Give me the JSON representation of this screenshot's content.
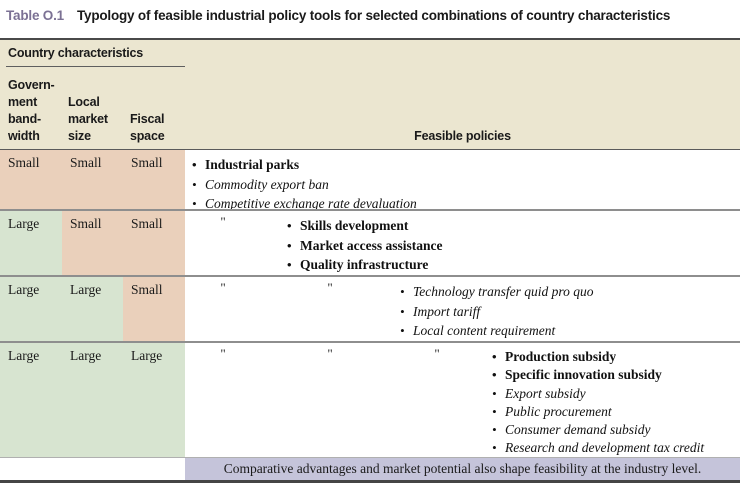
{
  "title": {
    "label": "Table O.1",
    "text": "Typology of feasible industrial policy tools for selected combinations of country characteristics"
  },
  "header": {
    "group_label": "Country characteristics",
    "columns": [
      "Govern-\nment\nband-\nwidth",
      "Local\nmarket\nsize",
      "Fiscal\nspace"
    ],
    "policies_label": "Feasible policies"
  },
  "rows": [
    {
      "government_bandwidth": "Small",
      "local_market_size": "Small",
      "fiscal_space": "Small",
      "ditto_marks": 0,
      "policies": [
        {
          "text": "Industrial parks",
          "emphasis": "bold"
        },
        {
          "text": "Commodity export ban",
          "emphasis": "italic"
        },
        {
          "text": "Competitive exchange rate devaluation",
          "emphasis": "italic"
        }
      ]
    },
    {
      "government_bandwidth": "Large",
      "local_market_size": "Small",
      "fiscal_space": "Small",
      "ditto_marks": 1,
      "policies": [
        {
          "text": "Skills development",
          "emphasis": "bold"
        },
        {
          "text": "Market access assistance",
          "emphasis": "bold"
        },
        {
          "text": "Quality infrastructure",
          "emphasis": "bold"
        }
      ]
    },
    {
      "government_bandwidth": "Large",
      "local_market_size": "Large",
      "fiscal_space": "Small",
      "ditto_marks": 2,
      "policies": [
        {
          "text": "Technology transfer quid pro quo",
          "emphasis": "italic"
        },
        {
          "text": "Import tariff",
          "emphasis": "italic"
        },
        {
          "text": "Local content requirement",
          "emphasis": "italic"
        }
      ]
    },
    {
      "government_bandwidth": "Large",
      "local_market_size": "Large",
      "fiscal_space": "Large",
      "ditto_marks": 3,
      "policies": [
        {
          "text": "Production subsidy",
          "emphasis": "bold"
        },
        {
          "text": "Specific innovation subsidy",
          "emphasis": "bold"
        },
        {
          "text": "Export subsidy",
          "emphasis": "italic"
        },
        {
          "text": "Public procurement",
          "emphasis": "italic"
        },
        {
          "text": "Consumer demand subsidy",
          "emphasis": "italic"
        },
        {
          "text": "Research and development tax credit",
          "emphasis": "italic"
        }
      ]
    }
  ],
  "ditto_symbol": "\"",
  "footer": {
    "note": "Comparative advantages and market potential also shape feasibility at the industry level."
  },
  "colors": {
    "accent": "#7B7194",
    "header_bg": "#EBE6D0",
    "small_bg": "#EAD0BB",
    "large_bg": "#D7E4D0",
    "footer_bg": "#C5C4DA"
  }
}
